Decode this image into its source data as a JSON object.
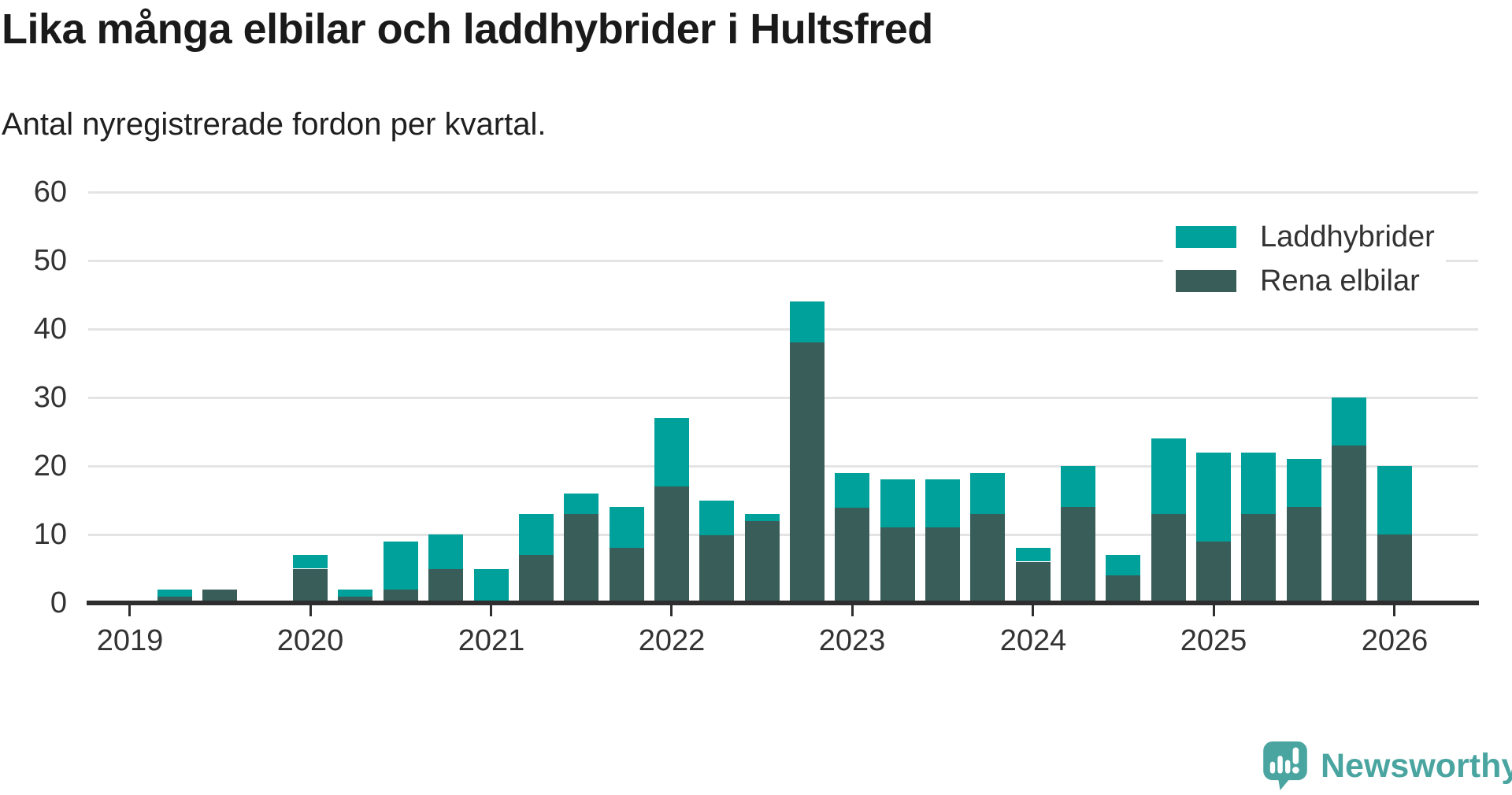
{
  "legend": {
    "items": [
      {
        "label": "Laddhybrider",
        "color": "#00a09b"
      },
      {
        "label": "Rena elbilar",
        "color": "#395d59"
      }
    ]
  },
  "footer": {
    "brand": "Newsworthy",
    "logo_color": "#4aa5a0"
  },
  "chart_data": {
    "type": "bar",
    "stacked": true,
    "title": "Lika många elbilar och laddhybrider i Hultsfred",
    "subtitle": "Antal nyregistrerade fordon per kvartal.",
    "xlabel": "",
    "ylabel": "",
    "ylim": [
      0,
      60
    ],
    "yticks": [
      0,
      10,
      20,
      30,
      40,
      50,
      60
    ],
    "grid": "horizontal",
    "legend_position": "top-right",
    "x_tick_labels": [
      "2019",
      "2020",
      "2021",
      "2022",
      "2023",
      "2024",
      "2025",
      "2026"
    ],
    "categories": [
      "2019 Q1",
      "2019 Q2",
      "2019 Q3",
      "2019 Q4",
      "2020 Q1",
      "2020 Q2",
      "2020 Q3",
      "2020 Q4",
      "2021 Q1",
      "2021 Q2",
      "2021 Q3",
      "2021 Q4",
      "2022 Q1",
      "2022 Q2",
      "2022 Q3",
      "2022 Q4",
      "2023 Q1",
      "2023 Q2",
      "2023 Q3",
      "2023 Q4",
      "2024 Q1",
      "2024 Q2",
      "2024 Q3",
      "2024 Q4",
      "2025 Q1",
      "2025 Q2",
      "2025 Q3",
      "2025 Q4",
      "2026 Q1"
    ],
    "series": [
      {
        "name": "Rena elbilar",
        "color": "#395d59",
        "stack_position": "bottom",
        "values": [
          0,
          1,
          2,
          0,
          5,
          1,
          2,
          5,
          0,
          7,
          13,
          8,
          17,
          10,
          12,
          38,
          14,
          11,
          11,
          13,
          6,
          14,
          4,
          13,
          9,
          13,
          14,
          23,
          10
        ]
      },
      {
        "name": "Laddhybrider",
        "color": "#00a09b",
        "stack_position": "top",
        "values": [
          0,
          1,
          0,
          0,
          2,
          1,
          7,
          5,
          5,
          6,
          3,
          6,
          10,
          5,
          1,
          6,
          5,
          7,
          7,
          6,
          2,
          6,
          3,
          11,
          13,
          9,
          7,
          7,
          10
        ]
      }
    ]
  }
}
